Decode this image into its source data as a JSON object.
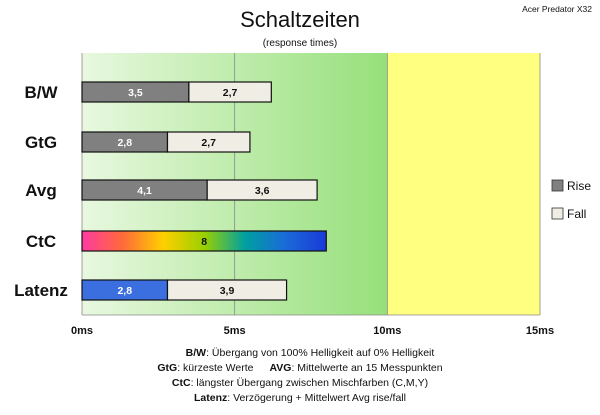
{
  "title": "Schaltzeiten",
  "subtitle": "(response times)",
  "monitor": "Acer Predator X32",
  "colors": {
    "rise": "#808080",
    "fall": "#f0eee4",
    "latenz_rise": "#3b6fe0",
    "zone_green": "#a8e88a",
    "zone_yellow": "#ffff80",
    "ctc_gradient": [
      "#ff3aa0",
      "#ff6a3a",
      "#ffd000",
      "#9ad000",
      "#00a0a0",
      "#1a6ad8",
      "#1a3ad8"
    ]
  },
  "legend": {
    "position": "right",
    "items": [
      {
        "label": "Rise",
        "color": "#808080"
      },
      {
        "label": "Fall",
        "color": "#f0eee4"
      }
    ]
  },
  "footnotes": {
    "line1": {
      "bold": "B/W",
      "text": ":  Übergang von 100% Helligkeit auf 0% Helligkeit"
    },
    "line2a": {
      "bold": "GtG",
      "text": ": kürzeste  Werte"
    },
    "line2b": {
      "bold": "AVG",
      "text": ": Mittelwerte  an 15 Messpunkten"
    },
    "line3": {
      "bold": "CtC",
      "text": ": längster Übergang  zwischen Mischfarben (C,M,Y)"
    },
    "line4": {
      "bold": "Latenz",
      "text": ": Verzögerung  + Mittelwert Avg rise/fall"
    }
  },
  "chart_data": {
    "type": "bar",
    "orientation": "horizontal",
    "stacked": true,
    "categories": [
      "B/W",
      "GtG",
      "Avg",
      "CtC",
      "Latenz"
    ],
    "series": [
      {
        "name": "Rise",
        "values": [
          3.5,
          2.8,
          4.1,
          8,
          2.8
        ]
      },
      {
        "name": "Fall",
        "values": [
          2.7,
          2.7,
          3.6,
          null,
          3.9
        ]
      }
    ],
    "value_labels": {
      "rise": [
        "3,5",
        "2,8",
        "4,1",
        "8",
        "2,8"
      ],
      "fall": [
        "2,7",
        "2,7",
        "3,6",
        "",
        "3,9"
      ]
    },
    "xlim": [
      0,
      15
    ],
    "xticks": [
      0,
      5,
      10,
      15
    ],
    "xtick_labels": [
      "0ms",
      "5ms",
      "10ms",
      "15ms"
    ],
    "zones": [
      {
        "from": 0,
        "to": 10,
        "color": "#a8e88a"
      },
      {
        "from": 10,
        "to": 15,
        "color": "#ffff80"
      }
    ],
    "grid": true
  }
}
